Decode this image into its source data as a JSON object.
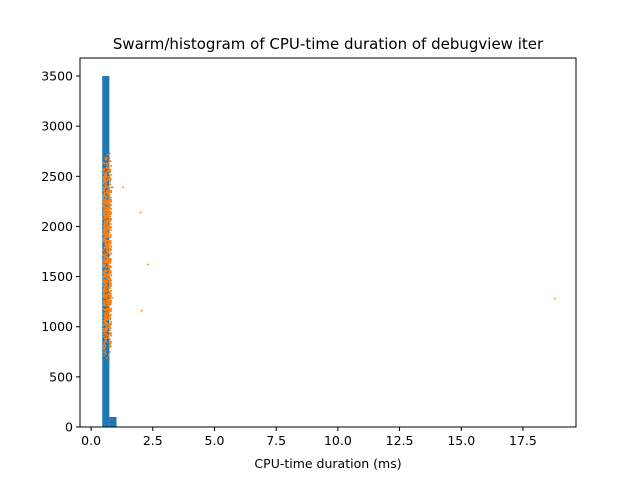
{
  "chart_data": {
    "type": "histogram",
    "title": "Swarm/histogram of CPU-time duration of debugview iter",
    "xlabel": "CPU-time duration (ms)",
    "ylabel": "",
    "xlim": [
      -0.45,
      19.65
    ],
    "ylim": [
      0,
      3680
    ],
    "x_ticks": [
      0,
      2.5,
      5,
      7.5,
      10,
      12.5,
      15,
      17.5
    ],
    "x_tick_labels": [
      "0.0",
      "2.5",
      "5.0",
      "7.5",
      "10.0",
      "12.5",
      "15.0",
      "17.5"
    ],
    "y_ticks": [
      0,
      500,
      1000,
      1500,
      2000,
      2500,
      3000,
      3500
    ],
    "y_tick_labels": [
      "0",
      "500",
      "1000",
      "1500",
      "2000",
      "2500",
      "3000",
      "3500"
    ],
    "grid": false,
    "histogram": {
      "color": "#1f77b4",
      "bins": [
        {
          "x0": 0.45,
          "x1": 0.74,
          "count": 3500
        },
        {
          "x0": 0.74,
          "x1": 1.03,
          "count": 100
        }
      ]
    },
    "swarm": {
      "color": "#ff7f0e",
      "core_x_range": [
        0.5,
        0.82
      ],
      "core_y_range": [
        620,
        2920
      ],
      "outliers": [
        {
          "x": 1.3,
          "y": 2390
        },
        {
          "x": 2.0,
          "y": 2140
        },
        {
          "x": 2.3,
          "y": 1620
        },
        {
          "x": 2.05,
          "y": 1160
        },
        {
          "x": 0.88,
          "y": 2390
        },
        {
          "x": 0.87,
          "y": 1290
        },
        {
          "x": 18.8,
          "y": 1280
        }
      ]
    }
  }
}
